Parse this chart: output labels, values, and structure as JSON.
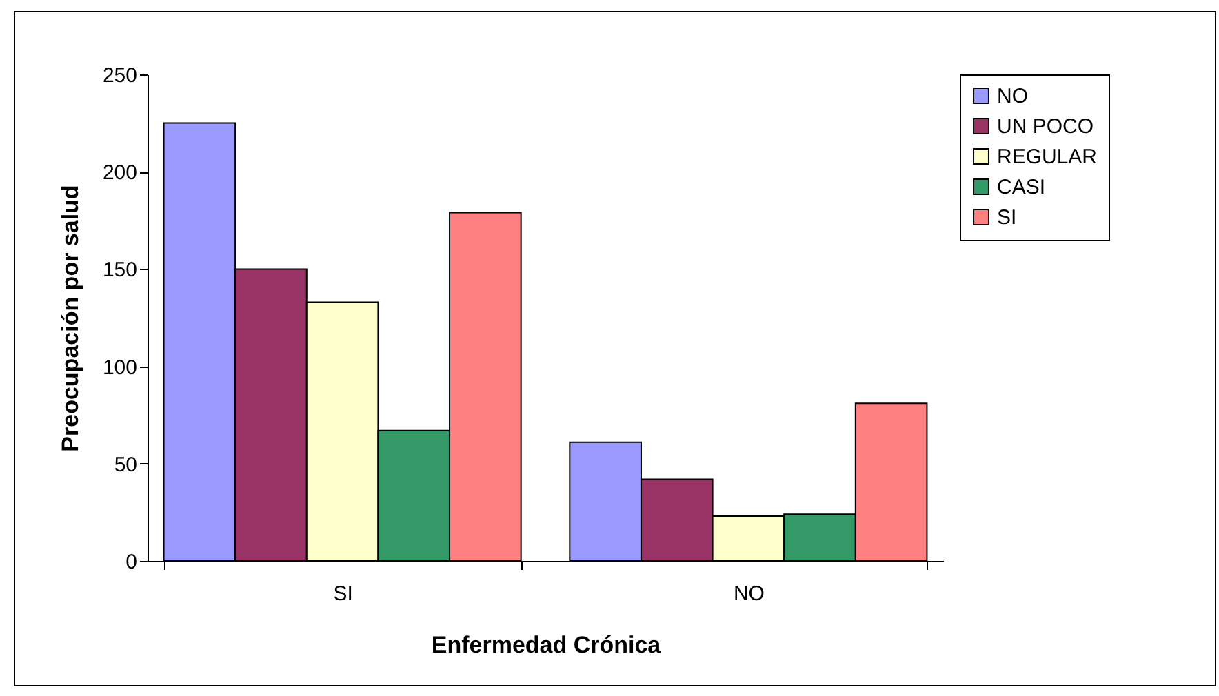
{
  "chart_data": {
    "type": "bar",
    "xlabel": "Enfermedad Crónica",
    "ylabel": "Preocupación por salud",
    "categories": [
      "SI",
      "NO"
    ],
    "series": [
      {
        "name": "NO",
        "color": "#9999ff",
        "values": [
          225,
          61
        ]
      },
      {
        "name": "UN POCO",
        "color": "#993366",
        "values": [
          150,
          42
        ]
      },
      {
        "name": "REGULAR",
        "color": "#ffffcc",
        "values": [
          133,
          23
        ]
      },
      {
        "name": "CASI",
        "color": "#339966",
        "values": [
          67,
          24
        ]
      },
      {
        "name": "SI",
        "color": "#ff8080",
        "values": [
          179,
          81
        ]
      }
    ],
    "ylim": [
      0,
      250
    ],
    "yticks": [
      0,
      50,
      100,
      150,
      200,
      250
    ],
    "grid": false,
    "legend": "right"
  }
}
